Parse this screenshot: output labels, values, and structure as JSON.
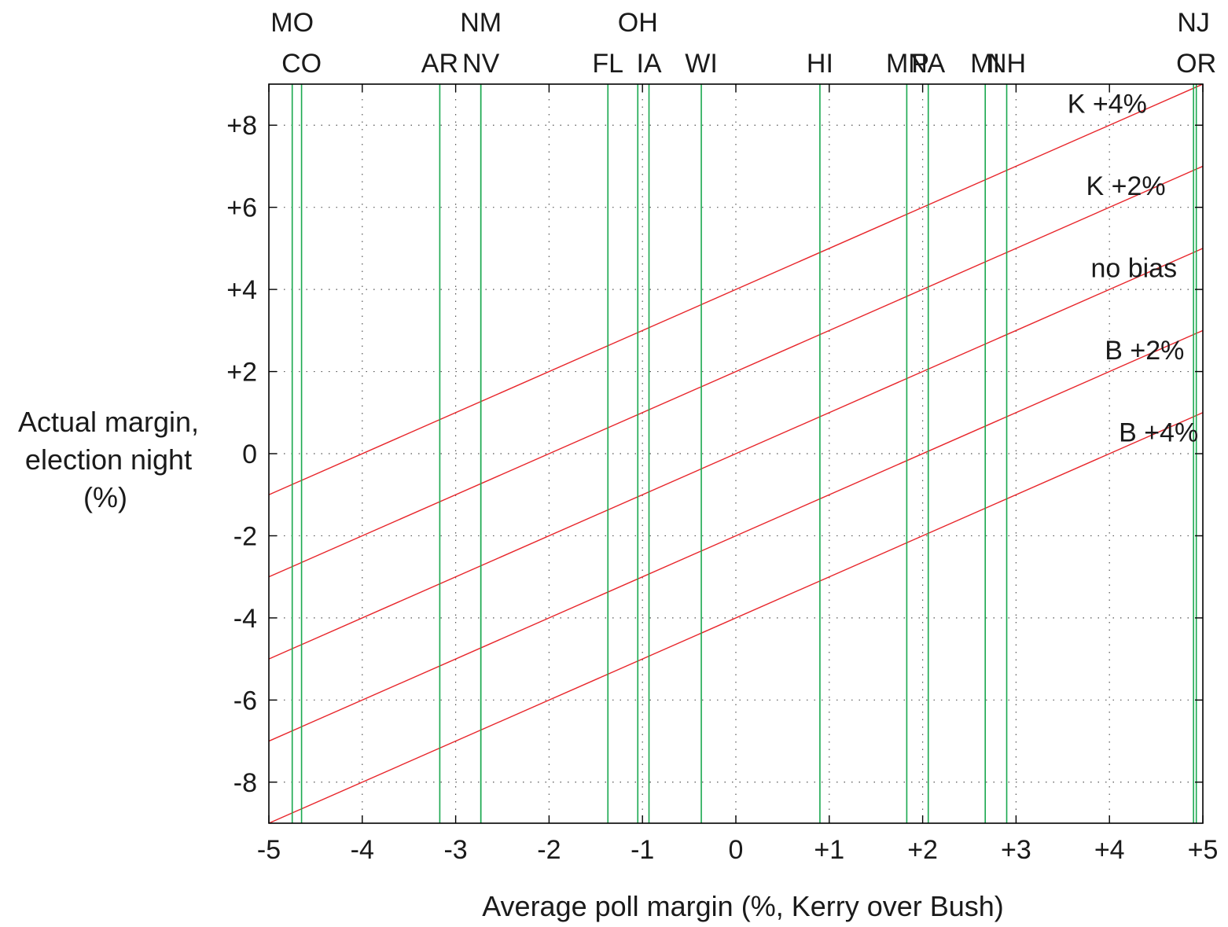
{
  "colors": {
    "bias_line": "#e8262b",
    "state_line": "#1aa84f",
    "grid": "#555555",
    "frame": "#000000"
  },
  "chart_data": {
    "type": "line",
    "xlabel": "Average poll margin (%, Kerry over Bush)",
    "ylabel_lines": [
      "Actual margin,",
      "election night",
      "(%)"
    ],
    "xlim": [
      -5,
      5
    ],
    "ylim": [
      -9,
      9
    ],
    "grid": true,
    "x_ticks": [
      {
        "value": -5,
        "label": "-5"
      },
      {
        "value": -4,
        "label": "-4"
      },
      {
        "value": -3,
        "label": "-3"
      },
      {
        "value": -2,
        "label": "-2"
      },
      {
        "value": -1,
        "label": "-1"
      },
      {
        "value": 0,
        "label": "0"
      },
      {
        "value": 1,
        "label": "+1"
      },
      {
        "value": 2,
        "label": "+2"
      },
      {
        "value": 3,
        "label": "+3"
      },
      {
        "value": 4,
        "label": "+4"
      },
      {
        "value": 5,
        "label": "+5"
      }
    ],
    "y_ticks": [
      {
        "value": 8,
        "label": "+8"
      },
      {
        "value": 6,
        "label": "+6"
      },
      {
        "value": 4,
        "label": "+4"
      },
      {
        "value": 2,
        "label": "+2"
      },
      {
        "value": 0,
        "label": "0"
      },
      {
        "value": -2,
        "label": "-2"
      },
      {
        "value": -4,
        "label": "-4"
      },
      {
        "value": -6,
        "label": "-6"
      },
      {
        "value": -8,
        "label": "-8"
      }
    ],
    "series": [
      {
        "name": "K +4%",
        "x": [
          -5,
          5
        ],
        "y": [
          -1,
          9
        ],
        "label_pos": {
          "x": 3.55,
          "y": 8.3
        }
      },
      {
        "name": "K +2%",
        "x": [
          -5,
          5
        ],
        "y": [
          -3,
          7
        ],
        "label_pos": {
          "x": 3.75,
          "y": 6.3
        }
      },
      {
        "name": "no bias",
        "x": [
          -5,
          5
        ],
        "y": [
          -5,
          5
        ],
        "label_pos": {
          "x": 3.8,
          "y": 4.3
        }
      },
      {
        "name": "B +2%",
        "x": [
          -5,
          5
        ],
        "y": [
          -7,
          3
        ],
        "label_pos": {
          "x": 3.95,
          "y": 2.3
        }
      },
      {
        "name": "B +4%",
        "x": [
          -5,
          5
        ],
        "y": [
          -9,
          1
        ],
        "label_pos": {
          "x": 4.1,
          "y": 0.3
        }
      }
    ],
    "states": [
      {
        "name": "MO",
        "x": -4.75,
        "row": "top"
      },
      {
        "name": "CO",
        "x": -4.65,
        "row": "bottom"
      },
      {
        "name": "AR",
        "x": -3.17,
        "row": "bottom"
      },
      {
        "name": "NM",
        "x": -2.73,
        "row": "top"
      },
      {
        "name": "NV",
        "x": -2.73,
        "row": "bottom"
      },
      {
        "name": "FL",
        "x": -1.37,
        "row": "bottom"
      },
      {
        "name": "OH",
        "x": -1.05,
        "row": "top"
      },
      {
        "name": "IA",
        "x": -0.93,
        "row": "bottom"
      },
      {
        "name": "WI",
        "x": -0.37,
        "row": "bottom"
      },
      {
        "name": "HI",
        "x": 0.9,
        "row": "bottom"
      },
      {
        "name": "MN",
        "x": 1.83,
        "row": "bottom"
      },
      {
        "name": "PA",
        "x": 2.06,
        "row": "bottom"
      },
      {
        "name": "MI",
        "x": 2.67,
        "row": "bottom"
      },
      {
        "name": "NH",
        "x": 2.9,
        "row": "bottom"
      },
      {
        "name": "NJ",
        "x": 4.9,
        "row": "top"
      },
      {
        "name": "OR",
        "x": 4.93,
        "row": "bottom"
      }
    ]
  }
}
